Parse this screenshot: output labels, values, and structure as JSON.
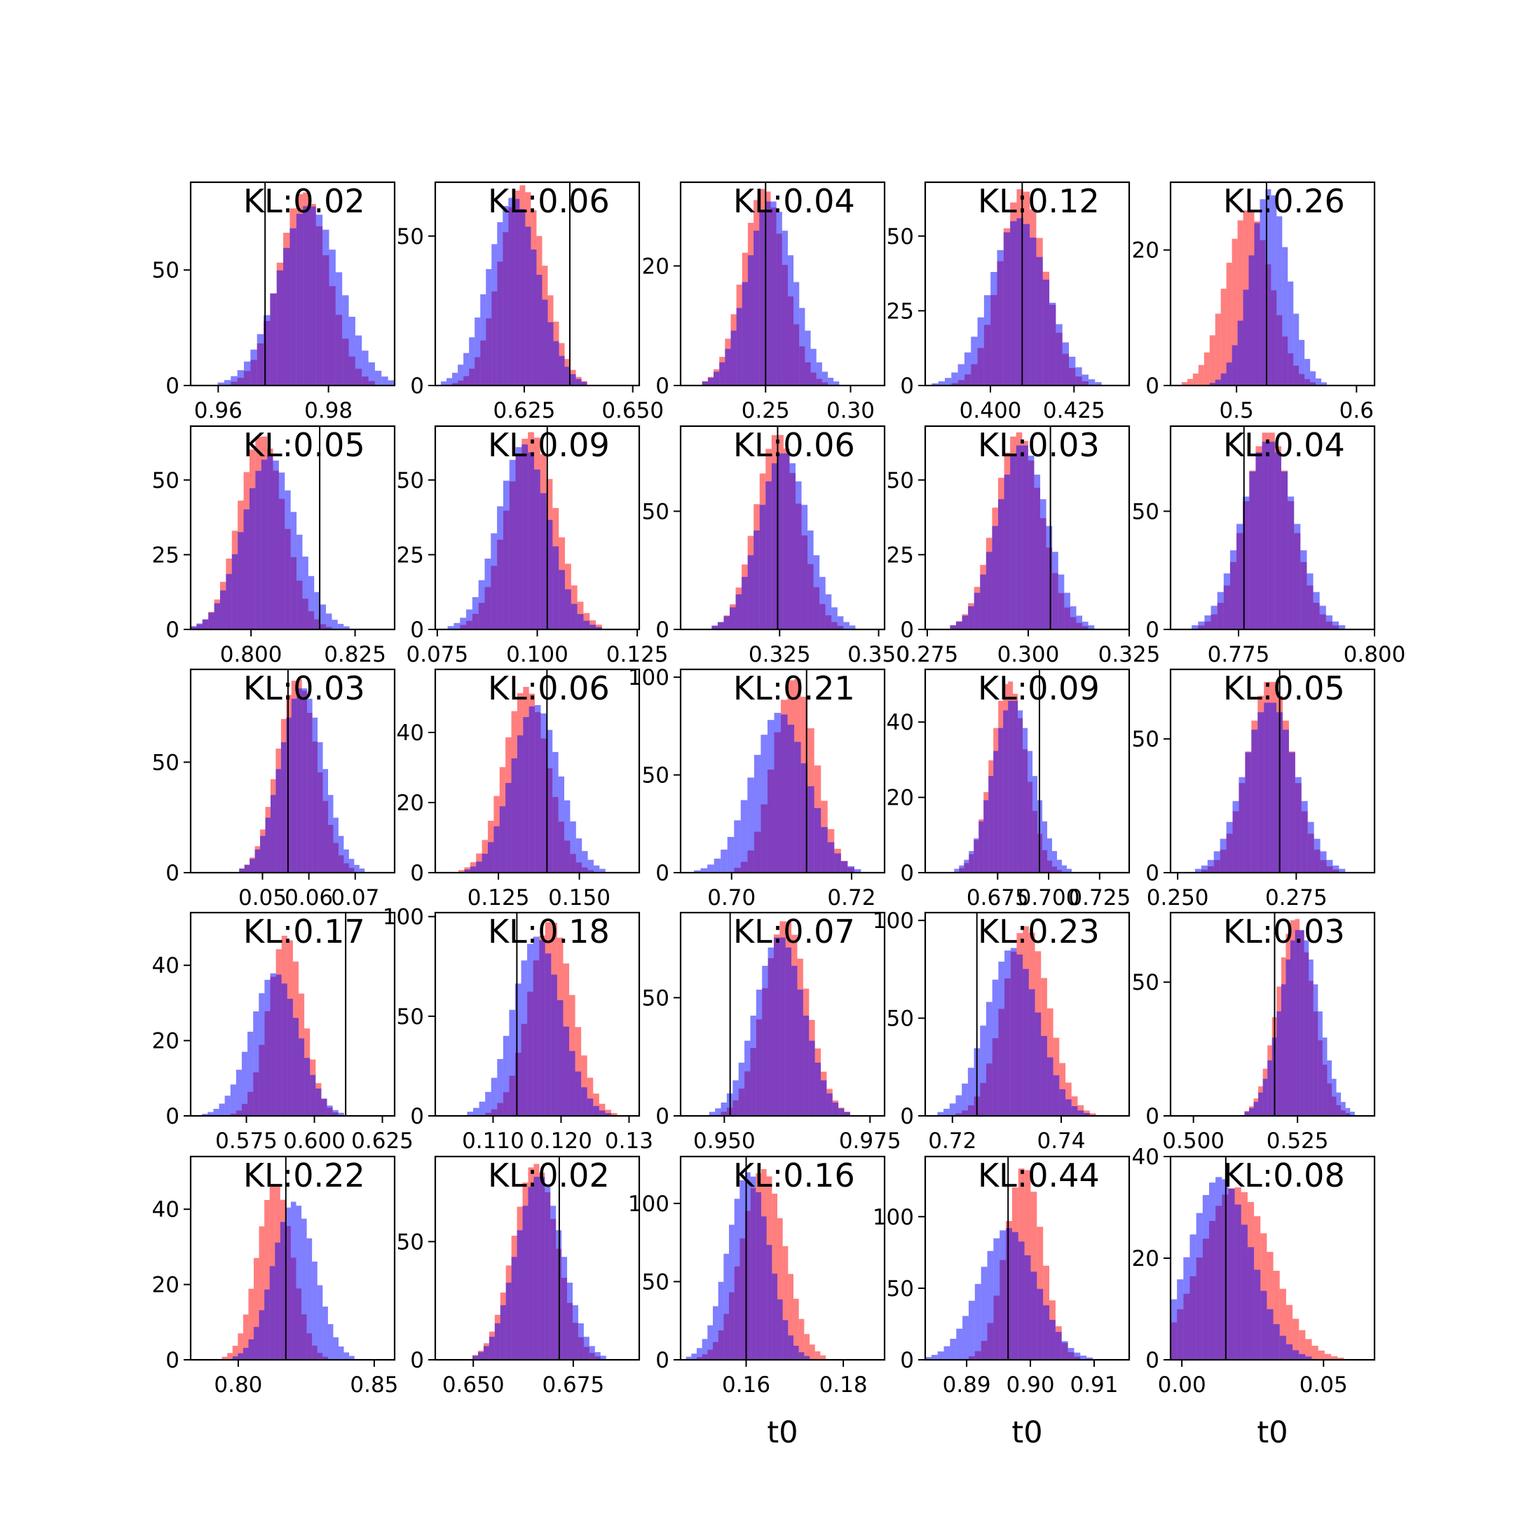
{
  "colors": {
    "posterior_a": "#ff0000",
    "posterior_b": "#0000ff",
    "reference_line": "#000000",
    "axes": "#000000"
  },
  "chart_data": [
    {
      "type": "bar",
      "kl_label": "KL:0.02",
      "xlim": [
        0.955,
        0.992
      ],
      "ylim": [
        0,
        88
      ],
      "xticks": [
        0.96,
        0.98
      ],
      "xtick_labels": [
        "0.96",
        "0.98"
      ],
      "yticks": [
        0,
        50
      ],
      "ytick_labels": [
        "0",
        "50"
      ],
      "reference_x": 0.9685,
      "xlabel": "",
      "mean_a": 0.9755,
      "sd_a": 0.0045,
      "peak_a": 84,
      "mean_b": 0.9765,
      "sd_b": 0.0056,
      "peak_b": 78
    },
    {
      "type": "bar",
      "kl_label": "KL:0.06",
      "xlim": [
        0.6045,
        0.6515
      ],
      "ylim": [
        0,
        68
      ],
      "xticks": [
        0.625,
        0.65
      ],
      "xtick_labels": [
        "0.625",
        "0.650"
      ],
      "yticks": [
        0,
        50
      ],
      "ytick_labels": [
        "0",
        "50"
      ],
      "reference_x": 0.6355,
      "xlabel": "",
      "mean_a": 0.6245,
      "sd_a": 0.0052,
      "peak_a": 67,
      "mean_b": 0.6225,
      "sd_b": 0.0058,
      "peak_b": 63
    },
    {
      "type": "bar",
      "kl_label": "KL:0.04",
      "xlim": [
        0.2,
        0.32
      ],
      "ylim": [
        0,
        34
      ],
      "xticks": [
        0.25,
        0.3
      ],
      "xtick_labels": [
        "0.25",
        "0.30"
      ],
      "yticks": [
        0,
        20
      ],
      "ytick_labels": [
        "0",
        "20"
      ],
      "reference_x": 0.25,
      "xlabel": "",
      "mean_a": 0.249,
      "sd_a": 0.0125,
      "peak_a": 33,
      "mean_b": 0.253,
      "sd_b": 0.014,
      "peak_b": 31
    },
    {
      "type": "bar",
      "kl_label": "KL:0.12",
      "xlim": [
        0.3805,
        0.4415
      ],
      "ylim": [
        0,
        68
      ],
      "xticks": [
        0.4,
        0.425
      ],
      "xtick_labels": [
        "0.400",
        "0.425"
      ],
      "yticks": [
        0,
        25,
        50
      ],
      "ytick_labels": [
        "0",
        "25",
        "50"
      ],
      "reference_x": 0.4095,
      "xlabel": "",
      "mean_a": 0.4095,
      "sd_a": 0.0068,
      "peak_a": 66,
      "mean_b": 0.4085,
      "sd_b": 0.0085,
      "peak_b": 56
    },
    {
      "type": "bar",
      "kl_label": "KL:0.26",
      "xlim": [
        0.445,
        0.615
      ],
      "ylim": [
        0,
        30
      ],
      "xticks": [
        0.5,
        0.6
      ],
      "xtick_labels": [
        "0.5",
        "0.6"
      ],
      "yticks": [
        0,
        20
      ],
      "ytick_labels": [
        "0",
        "20"
      ],
      "reference_x": 0.525,
      "xlabel": "",
      "mean_a": 0.51,
      "sd_a": 0.019,
      "peak_a": 26,
      "mean_b": 0.527,
      "sd_b": 0.016,
      "peak_b": 29
    },
    {
      "type": "bar",
      "kl_label": "KL:0.05",
      "xlim": [
        0.7855,
        0.8345
      ],
      "ylim": [
        0,
        68
      ],
      "xticks": [
        0.8,
        0.825
      ],
      "xtick_labels": [
        "0.800",
        "0.825"
      ],
      "yticks": [
        0,
        25,
        50
      ],
      "ytick_labels": [
        "0",
        "25",
        "50"
      ],
      "reference_x": 0.8165,
      "xlabel": "",
      "mean_a": 0.8025,
      "sd_a": 0.0055,
      "peak_a": 65,
      "mean_b": 0.8045,
      "sd_b": 0.0065,
      "peak_b": 58
    },
    {
      "type": "bar",
      "kl_label": "KL:0.09",
      "xlim": [
        0.0745,
        0.1255
      ],
      "ylim": [
        0,
        68
      ],
      "xticks": [
        0.075,
        0.1,
        0.125
      ],
      "xtick_labels": [
        "0.075",
        "0.100",
        "0.125"
      ],
      "yticks": [
        0,
        25,
        50
      ],
      "ytick_labels": [
        "0",
        "25",
        "50"
      ],
      "reference_x": 0.1025,
      "xlabel": "",
      "mean_a": 0.0985,
      "sd_a": 0.0062,
      "peak_a": 66,
      "mean_b": 0.0965,
      "sd_b": 0.0064,
      "peak_b": 62
    },
    {
      "type": "bar",
      "kl_label": "KL:0.06",
      "xlim": [
        0.3,
        0.3515
      ],
      "ylim": [
        0,
        86
      ],
      "xticks": [
        0.325,
        0.35
      ],
      "xtick_labels": [
        "0.325",
        "0.350"
      ],
      "yticks": [
        0,
        50
      ],
      "ytick_labels": [
        "0",
        "50"
      ],
      "reference_x": 0.3245,
      "xlabel": "",
      "mean_a": 0.3245,
      "sd_a": 0.0056,
      "peak_a": 83,
      "mean_b": 0.326,
      "sd_b": 0.0063,
      "peak_b": 75
    },
    {
      "type": "bar",
      "kl_label": "KL:0.03",
      "xlim": [
        0.2745,
        0.325
      ],
      "ylim": [
        0,
        68
      ],
      "xticks": [
        0.275,
        0.3,
        0.325
      ],
      "xtick_labels": [
        "0.275",
        "0.300",
        "0.325"
      ],
      "yticks": [
        0,
        25,
        50
      ],
      "ytick_labels": [
        "0",
        "25",
        "50"
      ],
      "reference_x": 0.3055,
      "xlabel": "",
      "mean_a": 0.2975,
      "sd_a": 0.0058,
      "peak_a": 66,
      "mean_b": 0.2985,
      "sd_b": 0.0062,
      "peak_b": 62
    },
    {
      "type": "bar",
      "kl_label": "KL:0.04",
      "xlim": [
        0.7625,
        0.8
      ],
      "ylim": [
        0,
        86
      ],
      "xticks": [
        0.775,
        0.8
      ],
      "xtick_labels": [
        "0.775",
        "0.800"
      ],
      "yticks": [
        0,
        50
      ],
      "ytick_labels": [
        "0",
        "50"
      ],
      "reference_x": 0.776,
      "xlabel": "",
      "mean_a": 0.7805,
      "sd_a": 0.0044,
      "peak_a": 84,
      "mean_b": 0.7805,
      "sd_b": 0.0049,
      "peak_b": 80
    },
    {
      "type": "bar",
      "kl_label": "KL:0.03",
      "xlim": [
        0.0345,
        0.0785
      ],
      "ylim": [
        0,
        92
      ],
      "xticks": [
        0.05,
        0.06,
        0.07
      ],
      "xtick_labels": [
        "0.05",
        "0.06",
        "0.07"
      ],
      "yticks": [
        0,
        50
      ],
      "ytick_labels": [
        "0",
        "50"
      ],
      "reference_x": 0.0555,
      "xlabel": "",
      "mean_a": 0.0575,
      "sd_a": 0.0043,
      "peak_a": 88,
      "mean_b": 0.0585,
      "sd_b": 0.0047,
      "peak_b": 84
    },
    {
      "type": "bar",
      "kl_label": "KL:0.06",
      "xlim": [
        0.1055,
        0.1685
      ],
      "ylim": [
        0,
        58
      ],
      "xticks": [
        0.125,
        0.15
      ],
      "xtick_labels": [
        "0.125",
        "0.150"
      ],
      "yticks": [
        0,
        20,
        40
      ],
      "ytick_labels": [
        "0",
        "20",
        "40"
      ],
      "reference_x": 0.14,
      "xlabel": "",
      "mean_a": 0.1335,
      "sd_a": 0.0068,
      "peak_a": 53,
      "mean_b": 0.1365,
      "sd_b": 0.0075,
      "peak_b": 48
    },
    {
      "type": "bar",
      "kl_label": "KL:0.21",
      "xlim": [
        0.6915,
        0.7255
      ],
      "ylim": [
        0,
        104
      ],
      "xticks": [
        0.7,
        0.72
      ],
      "xtick_labels": [
        "0.70",
        "0.72"
      ],
      "yticks": [
        0,
        50,
        100
      ],
      "ytick_labels": [
        "0",
        "50",
        "100"
      ],
      "reference_x": 0.7125,
      "xlabel": "",
      "mean_a": 0.7105,
      "sd_a": 0.0035,
      "peak_a": 100,
      "mean_b": 0.708,
      "sd_b": 0.0047,
      "peak_b": 82
    },
    {
      "type": "bar",
      "kl_label": "KL:0.09",
      "xlim": [
        0.6395,
        0.7395
      ],
      "ylim": [
        0,
        54
      ],
      "xticks": [
        0.675,
        0.7,
        0.725
      ],
      "xtick_labels": [
        "0.675",
        "0.700",
        "0.725"
      ],
      "yticks": [
        0,
        20,
        40
      ],
      "ytick_labels": [
        "0",
        "20",
        "40"
      ],
      "reference_x": 0.6955,
      "xlabel": "",
      "mean_a": 0.6805,
      "sd_a": 0.0085,
      "peak_a": 51,
      "mean_b": 0.6825,
      "sd_b": 0.01,
      "peak_b": 46
    },
    {
      "type": "bar",
      "kl_label": "KL:0.05",
      "xlim": [
        0.2485,
        0.2915
      ],
      "ylim": [
        0,
        76
      ],
      "xticks": [
        0.25,
        0.275
      ],
      "xtick_labels": [
        "0.250",
        "0.275"
      ],
      "yticks": [
        0,
        50
      ],
      "ytick_labels": [
        "0",
        "50"
      ],
      "reference_x": 0.2715,
      "xlabel": "",
      "mean_a": 0.2695,
      "sd_a": 0.0048,
      "peak_a": 72,
      "mean_b": 0.2695,
      "sd_b": 0.0055,
      "peak_b": 64
    },
    {
      "type": "bar",
      "kl_label": "KL:0.17",
      "xlim": [
        0.5545,
        0.6295
      ],
      "ylim": [
        0,
        54
      ],
      "xticks": [
        0.575,
        0.6,
        0.625
      ],
      "xtick_labels": [
        "0.575",
        "0.600",
        "0.625"
      ],
      "yticks": [
        0,
        20,
        40
      ],
      "ytick_labels": [
        "0",
        "20",
        "40"
      ],
      "reference_x": 0.6115,
      "xlabel": "",
      "mean_a": 0.5895,
      "sd_a": 0.0065,
      "peak_a": 48,
      "mean_b": 0.5855,
      "sd_b": 0.0088,
      "peak_b": 38
    },
    {
      "type": "bar",
      "kl_label": "KL:0.18",
      "xlim": [
        0.1015,
        0.1315
      ],
      "ylim": [
        0,
        102
      ],
      "xticks": [
        0.11,
        0.12,
        0.13
      ],
      "xtick_labels": [
        "0.110",
        "0.120",
        "0.13"
      ],
      "yticks": [
        0,
        50,
        100
      ],
      "ytick_labels": [
        "0",
        "50",
        "100"
      ],
      "reference_x": 0.1135,
      "xlabel": "",
      "mean_a": 0.1185,
      "sd_a": 0.0032,
      "peak_a": 98,
      "mean_b": 0.1165,
      "sd_b": 0.0036,
      "peak_b": 90
    },
    {
      "type": "bar",
      "kl_label": "KL:0.07",
      "xlim": [
        0.9425,
        0.9775
      ],
      "ylim": [
        0,
        86
      ],
      "xticks": [
        0.95,
        0.975
      ],
      "xtick_labels": [
        "0.950",
        "0.975"
      ],
      "yticks": [
        0,
        50
      ],
      "ytick_labels": [
        "0",
        "50"
      ],
      "reference_x": 0.951,
      "xlabel": "",
      "mean_a": 0.9605,
      "sd_a": 0.0038,
      "peak_a": 83,
      "mean_b": 0.9595,
      "sd_b": 0.0042,
      "peak_b": 76
    },
    {
      "type": "bar",
      "kl_label": "KL:0.23",
      "xlim": [
        0.715,
        0.7525
      ],
      "ylim": [
        0,
        104
      ],
      "xticks": [
        0.72,
        0.74
      ],
      "xtick_labels": [
        "0.72",
        "0.74"
      ],
      "yticks": [
        0,
        50,
        100
      ],
      "ytick_labels": [
        "0",
        "50",
        "100"
      ],
      "reference_x": 0.7245,
      "xlabel": "",
      "mean_a": 0.7335,
      "sd_a": 0.0042,
      "peak_a": 97,
      "mean_b": 0.731,
      "sd_b": 0.0048,
      "peak_b": 86
    },
    {
      "type": "bar",
      "kl_label": "KL:0.03",
      "xlim": [
        0.4945,
        0.5435
      ],
      "ylim": [
        0,
        76
      ],
      "xticks": [
        0.5,
        0.525
      ],
      "xtick_labels": [
        "0.500",
        "0.525"
      ],
      "yticks": [
        0,
        50
      ],
      "ytick_labels": [
        "0",
        "50"
      ],
      "reference_x": 0.5195,
      "xlabel": "",
      "mean_a": 0.5245,
      "sd_a": 0.0043,
      "peak_a": 74,
      "mean_b": 0.5255,
      "sd_b": 0.0046,
      "peak_b": 70
    },
    {
      "type": "bar",
      "kl_label": "KL:0.22",
      "xlim": [
        0.7825,
        0.8575
      ],
      "ylim": [
        0,
        54
      ],
      "xticks": [
        0.8,
        0.85
      ],
      "xtick_labels": [
        "0.80",
        "0.85"
      ],
      "yticks": [
        0,
        20,
        40
      ],
      "ytick_labels": [
        "0",
        "20",
        "40"
      ],
      "reference_x": 0.8175,
      "xlabel": "",
      "mean_a": 0.8135,
      "sd_a": 0.0065,
      "peak_a": 47,
      "mean_b": 0.8205,
      "sd_b": 0.0078,
      "peak_b": 42
    },
    {
      "type": "bar",
      "kl_label": "KL:0.02",
      "xlim": [
        0.6405,
        0.6915
      ],
      "ylim": [
        0,
        86
      ],
      "xticks": [
        0.65,
        0.675
      ],
      "xtick_labels": [
        "0.650",
        "0.675"
      ],
      "yticks": [
        0,
        50
      ],
      "ytick_labels": [
        "0",
        "50"
      ],
      "reference_x": 0.6715,
      "xlabel": "",
      "mean_a": 0.6655,
      "sd_a": 0.0055,
      "peak_a": 83,
      "mean_b": 0.6665,
      "sd_b": 0.0058,
      "peak_b": 78
    },
    {
      "type": "bar",
      "kl_label": "KL:0.16",
      "xlim": [
        0.1465,
        0.1885
      ],
      "ylim": [
        0,
        130
      ],
      "xticks": [
        0.16,
        0.18
      ],
      "xtick_labels": [
        "0.16",
        "0.18"
      ],
      "yticks": [
        0,
        50,
        100
      ],
      "ytick_labels": [
        "0",
        "50",
        "100"
      ],
      "reference_x": 0.16,
      "xlabel": "t0",
      "mean_a": 0.1635,
      "sd_a": 0.0045,
      "peak_a": 122,
      "mean_b": 0.1605,
      "sd_b": 0.0043,
      "peak_b": 120
    },
    {
      "type": "bar",
      "kl_label": "KL:0.44",
      "xlim": [
        0.8835,
        0.9155
      ],
      "ylim": [
        0,
        142
      ],
      "xticks": [
        0.89,
        0.9,
        0.91
      ],
      "xtick_labels": [
        "0.89",
        "0.90",
        "0.91"
      ],
      "yticks": [
        0,
        50,
        100
      ],
      "ytick_labels": [
        "0",
        "50",
        "100"
      ],
      "reference_x": 0.8965,
      "xlabel": "t0",
      "mean_a": 0.899,
      "sd_a": 0.0029,
      "peak_a": 135,
      "mean_b": 0.8965,
      "sd_b": 0.0045,
      "peak_b": 92
    },
    {
      "type": "bar",
      "kl_label": "KL:0.08",
      "xlim": [
        -0.004,
        0.068
      ],
      "ylim": [
        0,
        40
      ],
      "xticks": [
        0,
        0.05
      ],
      "xtick_labels": [
        "0.00",
        "0.05"
      ],
      "yticks": [
        0,
        20,
        40
      ],
      "ytick_labels": [
        "0",
        "20",
        "40"
      ],
      "reference_x": 0.0155,
      "xlabel": "t0",
      "mean_a": 0.019,
      "sd_a": 0.0125,
      "peak_a": 34,
      "mean_b": 0.0135,
      "sd_b": 0.011,
      "peak_b": 36
    }
  ]
}
